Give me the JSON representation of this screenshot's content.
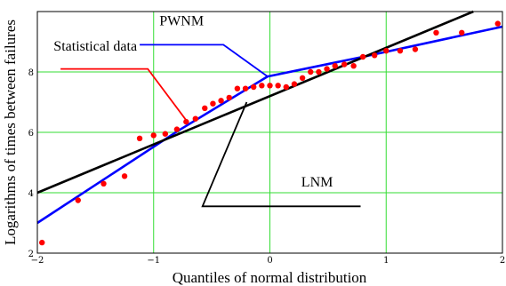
{
  "chart_data": {
    "type": "scatter",
    "xlabel": "Quantiles of normal distribution",
    "ylabel": "Logarithms of times between failures",
    "xlim": [
      -2,
      2
    ],
    "ylim": [
      2,
      10
    ],
    "x_ticks": [
      -2,
      -1,
      0,
      1,
      2
    ],
    "x_tick_labels": [
      "−2",
      "−1",
      "0",
      "1",
      "2"
    ],
    "y_ticks": [
      2,
      4,
      6,
      8
    ],
    "y_tick_labels": [
      "2",
      "4",
      "6",
      "8"
    ],
    "grid": true,
    "legend": "none",
    "colors": {
      "points": "#ff0000",
      "pwnm": "#0000ff",
      "lnm": "#000000",
      "grid": "#33dd33",
      "frame": "#000000"
    },
    "series": [
      {
        "name": "Statistical data",
        "kind": "points",
        "x": [
          -1.96,
          -1.65,
          -1.43,
          -1.25,
          -1.12,
          -1.0,
          -0.9,
          -0.8,
          -0.72,
          -0.64,
          -0.56,
          -0.49,
          -0.42,
          -0.35,
          -0.28,
          -0.21,
          -0.14,
          -0.07,
          0.0,
          0.07,
          0.14,
          0.21,
          0.28,
          0.35,
          0.42,
          0.49,
          0.56,
          0.64,
          0.72,
          0.8,
          0.9,
          1.0,
          1.12,
          1.25,
          1.43,
          1.65,
          1.96
        ],
        "y": [
          2.35,
          3.75,
          4.3,
          4.55,
          5.8,
          5.9,
          5.95,
          6.1,
          6.35,
          6.45,
          6.8,
          6.95,
          7.05,
          7.15,
          7.45,
          7.45,
          7.5,
          7.55,
          7.55,
          7.55,
          7.5,
          7.6,
          7.8,
          8.0,
          8.0,
          8.1,
          8.2,
          8.25,
          8.2,
          8.5,
          8.55,
          8.7,
          8.7,
          8.75,
          9.3,
          9.3,
          9.6
        ]
      },
      {
        "name": "PWNM",
        "kind": "line",
        "x": [
          -2.0,
          -0.79,
          -0.02,
          0.8,
          2.0
        ],
        "y": [
          3.0,
          6.05,
          7.85,
          8.5,
          9.5
        ]
      },
      {
        "name": "LNM",
        "kind": "line",
        "x": [
          -2.0,
          1.75
        ],
        "y": [
          4.0,
          10.0
        ]
      }
    ],
    "annotations": [
      {
        "text": "Statistical data",
        "text_at": [
          -1.86,
          8.7
        ],
        "leader": [
          [
            -1.8,
            8.1
          ],
          [
            -1.05,
            8.1
          ],
          [
            -0.72,
            6.4
          ]
        ],
        "leader_color": "#ff0000"
      },
      {
        "text": "PWNM",
        "text_at": [
          -0.95,
          9.55
        ],
        "leader": [
          [
            -1.12,
            8.9
          ],
          [
            -0.4,
            8.9
          ],
          [
            -0.02,
            7.85
          ]
        ],
        "leader_color": "#0000ff"
      },
      {
        "text": "LNM",
        "text_at": [
          0.27,
          4.2
        ],
        "leader": [
          [
            0.78,
            3.55
          ],
          [
            -0.58,
            3.55
          ],
          [
            -0.2,
            7.0
          ]
        ],
        "leader_color": "#000000"
      }
    ]
  }
}
